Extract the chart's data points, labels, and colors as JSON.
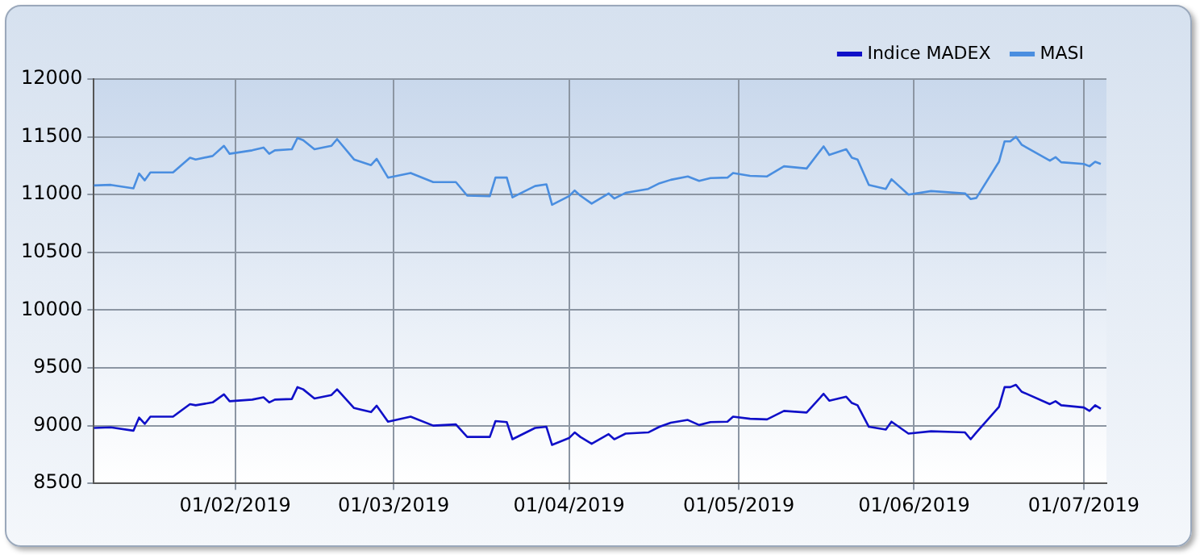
{
  "chart_data": {
    "type": "line",
    "legend": "top right",
    "grid": true,
    "marker": "none",
    "line_style": "solid",
    "xlim": [
      "2019-01-07",
      "2019-07-05"
    ],
    "xticks": [
      {
        "value": "2019-02-01",
        "label": "01/02/2019"
      },
      {
        "value": "2019-03-01",
        "label": "01/03/2019"
      },
      {
        "value": "2019-04-01",
        "label": "01/04/2019"
      },
      {
        "value": "2019-05-01",
        "label": "01/05/2019"
      },
      {
        "value": "2019-06-01",
        "label": "01/06/2019"
      },
      {
        "value": "2019-07-01",
        "label": "01/07/2019"
      }
    ],
    "ylim": [
      8500,
      12000
    ],
    "yticks": [
      8500,
      9000,
      9500,
      10000,
      10500,
      11000,
      11500,
      12000
    ],
    "x": [
      "2019-01-07",
      "2019-01-10",
      "2019-01-14",
      "2019-01-15",
      "2019-01-16",
      "2019-01-17",
      "2019-01-21",
      "2019-01-24",
      "2019-01-25",
      "2019-01-28",
      "2019-01-30",
      "2019-01-31",
      "2019-02-04",
      "2019-02-06",
      "2019-02-07",
      "2019-02-08",
      "2019-02-11",
      "2019-02-12",
      "2019-02-13",
      "2019-02-15",
      "2019-02-18",
      "2019-02-19",
      "2019-02-22",
      "2019-02-25",
      "2019-02-26",
      "2019-02-28",
      "2019-03-04",
      "2019-03-08",
      "2019-03-12",
      "2019-03-14",
      "2019-03-18",
      "2019-03-19",
      "2019-03-21",
      "2019-03-22",
      "2019-03-26",
      "2019-03-28",
      "2019-03-29",
      "2019-04-01",
      "2019-04-02",
      "2019-04-03",
      "2019-04-05",
      "2019-04-08",
      "2019-04-09",
      "2019-04-11",
      "2019-04-15",
      "2019-04-17",
      "2019-04-19",
      "2019-04-22",
      "2019-04-24",
      "2019-04-26",
      "2019-04-29",
      "2019-04-30",
      "2019-05-03",
      "2019-05-06",
      "2019-05-09",
      "2019-05-13",
      "2019-05-16",
      "2019-05-17",
      "2019-05-20",
      "2019-05-21",
      "2019-05-22",
      "2019-05-24",
      "2019-05-27",
      "2019-05-28",
      "2019-05-31",
      "2019-06-04",
      "2019-06-10",
      "2019-06-11",
      "2019-06-12",
      "2019-06-16",
      "2019-06-17",
      "2019-06-18",
      "2019-06-19",
      "2019-06-20",
      "2019-06-25",
      "2019-06-26",
      "2019-06-27",
      "2019-07-01",
      "2019-07-02",
      "2019-07-03",
      "2019-07-04"
    ],
    "series": [
      {
        "name": "Indice MADEX",
        "color": "#1010c8",
        "values": [
          8980,
          8985,
          8956,
          9069,
          9015,
          9078,
          9078,
          9186,
          9176,
          9201,
          9270,
          9211,
          9225,
          9245,
          9201,
          9225,
          9230,
          9333,
          9314,
          9235,
          9265,
          9314,
          9152,
          9117,
          9172,
          9034,
          9078,
          9000,
          9010,
          8902,
          8902,
          9039,
          9030,
          8882,
          8980,
          8990,
          8833,
          8892,
          8941,
          8902,
          8843,
          8926,
          8882,
          8931,
          8941,
          8990,
          9025,
          9049,
          9005,
          9030,
          9034,
          9078,
          9059,
          9054,
          9127,
          9113,
          9275,
          9216,
          9250,
          9196,
          9176,
          8990,
          8966,
          9034,
          8931,
          8951,
          8941,
          8882,
          8941,
          9162,
          9333,
          9333,
          9353,
          9294,
          9186,
          9211,
          9176,
          9157,
          9127,
          9176,
          9147
        ]
      },
      {
        "name": "MASI",
        "color": "#4a8ee0",
        "values": [
          11079,
          11084,
          11054,
          11182,
          11123,
          11192,
          11192,
          11319,
          11304,
          11334,
          11422,
          11353,
          11383,
          11407,
          11353,
          11383,
          11392,
          11490,
          11471,
          11392,
          11422,
          11480,
          11304,
          11255,
          11309,
          11147,
          11187,
          11108,
          11108,
          10991,
          10986,
          11147,
          11147,
          10976,
          11074,
          11089,
          10912,
          10986,
          11035,
          10991,
          10922,
          11010,
          10966,
          11015,
          11049,
          11098,
          11128,
          11157,
          11118,
          11143,
          11147,
          11187,
          11162,
          11157,
          11245,
          11226,
          11417,
          11343,
          11392,
          11319,
          11304,
          11084,
          11049,
          11133,
          11000,
          11030,
          11010,
          10961,
          10971,
          11284,
          11461,
          11461,
          11500,
          11432,
          11294,
          11324,
          11280,
          11265,
          11245,
          11284,
          11265
        ]
      }
    ]
  }
}
